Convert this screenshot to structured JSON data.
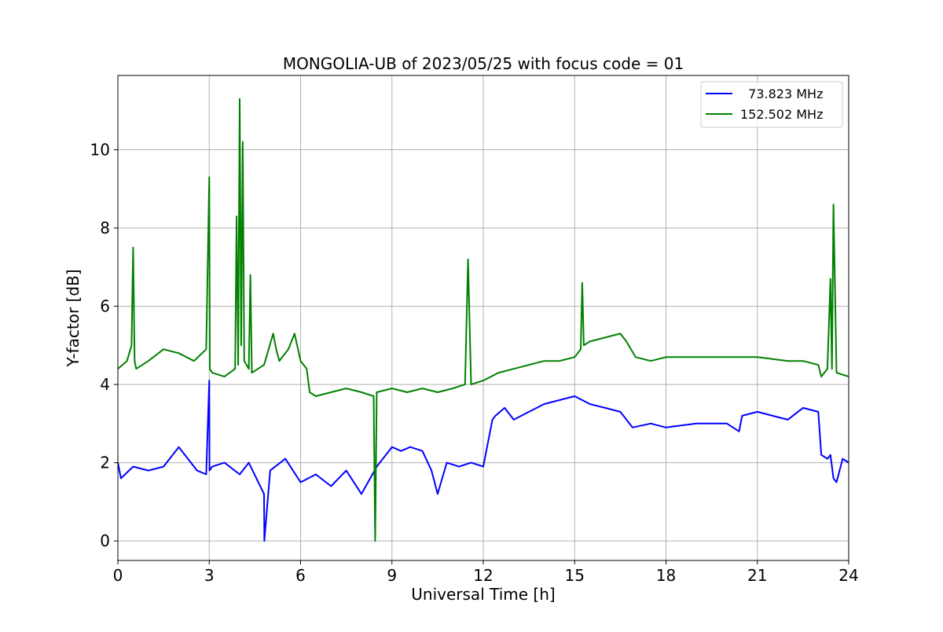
{
  "chart_data": {
    "type": "line",
    "title": "MONGOLIA-UB of 2023/05/25 with focus code = 01",
    "xlabel": "Universal Time [h]",
    "ylabel": "Y-factor [dB]",
    "xlim": [
      0,
      24
    ],
    "ylim": [
      -0.5,
      11.9
    ],
    "xticks": [
      0,
      3,
      6,
      9,
      12,
      15,
      18,
      21,
      24
    ],
    "yticks": [
      0,
      2,
      4,
      6,
      8,
      10
    ],
    "grid": true,
    "legend_position": "top-right",
    "series": [
      {
        "name": "  73.823 MHz",
        "color": "#0000ff",
        "x": [
          0,
          0.1,
          0.5,
          1.0,
          1.5,
          2.0,
          2.3,
          2.6,
          2.9,
          3.0,
          3.01,
          3.1,
          3.5,
          4.0,
          4.3,
          4.8,
          4.81,
          5.0,
          5.5,
          6.0,
          6.5,
          7.0,
          7.5,
          8.0,
          8.5,
          9.0,
          9.3,
          9.6,
          10.0,
          10.3,
          10.5,
          10.8,
          11.2,
          11.6,
          12.0,
          12.3,
          12.4,
          12.7,
          13.0,
          13.5,
          14.0,
          14.5,
          15.0,
          15.5,
          16.0,
          16.5,
          16.9,
          17.5,
          18.0,
          19.0,
          20.0,
          20.4,
          20.5,
          21.0,
          21.5,
          22.0,
          22.5,
          23.0,
          23.1,
          23.3,
          23.4,
          23.5,
          23.6,
          23.8,
          24.0
        ],
        "y": [
          2.0,
          1.6,
          1.9,
          1.8,
          1.9,
          2.4,
          2.1,
          1.8,
          1.7,
          4.1,
          1.8,
          1.9,
          2.0,
          1.7,
          2.0,
          1.2,
          0.0,
          1.8,
          2.1,
          1.5,
          1.7,
          1.4,
          1.8,
          1.2,
          1.9,
          2.4,
          2.3,
          2.4,
          2.3,
          1.8,
          1.2,
          2.0,
          1.9,
          2.0,
          1.9,
          3.1,
          3.2,
          3.4,
          3.1,
          3.3,
          3.5,
          3.6,
          3.7,
          3.5,
          3.4,
          3.3,
          2.9,
          3.0,
          2.9,
          3.0,
          3.0,
          2.8,
          3.2,
          3.3,
          3.2,
          3.1,
          3.4,
          3.3,
          2.2,
          2.1,
          2.2,
          1.6,
          1.5,
          2.1,
          2.0
        ]
      },
      {
        "name": "152.502 MHz",
        "color": "#008000",
        "x": [
          0,
          0.3,
          0.45,
          0.5,
          0.55,
          0.6,
          1.0,
          1.5,
          2.0,
          2.5,
          2.9,
          3.0,
          3.02,
          3.1,
          3.5,
          3.85,
          3.9,
          3.95,
          4.0,
          4.05,
          4.1,
          4.15,
          4.3,
          4.35,
          4.4,
          4.8,
          5.1,
          5.2,
          5.3,
          5.6,
          5.8,
          6.0,
          6.2,
          6.3,
          6.5,
          7.0,
          7.5,
          8.0,
          8.4,
          8.45,
          8.5,
          9.0,
          9.5,
          10.0,
          10.5,
          11.0,
          11.4,
          11.5,
          11.6,
          12.0,
          12.5,
          13.0,
          13.5,
          14.0,
          14.5,
          15.0,
          15.2,
          15.25,
          15.3,
          15.5,
          16.0,
          16.5,
          16.7,
          17.0,
          17.5,
          18.0,
          19.0,
          20.0,
          21.0,
          22.0,
          22.5,
          23.0,
          23.1,
          23.3,
          23.4,
          23.45,
          23.5,
          23.6,
          24.0
        ],
        "y": [
          4.4,
          4.6,
          5.0,
          7.5,
          4.6,
          4.4,
          4.6,
          4.9,
          4.8,
          4.6,
          4.9,
          9.3,
          4.4,
          4.3,
          4.2,
          4.4,
          8.3,
          4.5,
          11.3,
          5.0,
          10.2,
          4.6,
          4.4,
          6.8,
          4.3,
          4.5,
          5.3,
          4.9,
          4.6,
          4.9,
          5.3,
          4.6,
          4.4,
          3.8,
          3.7,
          3.8,
          3.9,
          3.8,
          3.7,
          0.0,
          3.8,
          3.9,
          3.8,
          3.9,
          3.8,
          3.9,
          4.0,
          7.2,
          4.0,
          4.1,
          4.3,
          4.4,
          4.5,
          4.6,
          4.6,
          4.7,
          4.9,
          6.6,
          5.0,
          5.1,
          5.2,
          5.3,
          5.1,
          4.7,
          4.6,
          4.7,
          4.7,
          4.7,
          4.7,
          4.6,
          4.6,
          4.5,
          4.2,
          4.4,
          6.7,
          4.4,
          8.6,
          4.3,
          4.2
        ]
      }
    ]
  }
}
